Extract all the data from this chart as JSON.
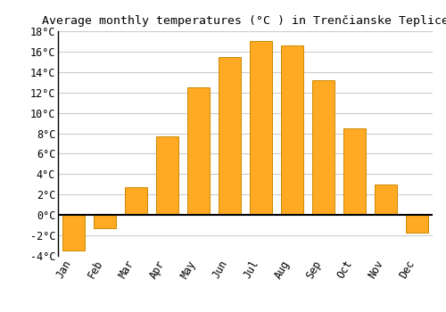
{
  "title": "Average monthly temperatures (°C ) in Trenčianske Teplice",
  "months": [
    "Jan",
    "Feb",
    "Mar",
    "Apr",
    "May",
    "Jun",
    "Jul",
    "Aug",
    "Sep",
    "Oct",
    "Nov",
    "Dec"
  ],
  "values": [
    -3.5,
    -1.3,
    2.7,
    7.7,
    12.5,
    15.5,
    17.0,
    16.6,
    13.2,
    8.5,
    3.0,
    -1.7
  ],
  "bar_color": "#FFAA22",
  "bar_edge_color": "#CC8800",
  "ylim": [
    -4,
    18
  ],
  "yticks": [
    -4,
    -2,
    0,
    2,
    4,
    6,
    8,
    10,
    12,
    14,
    16,
    18
  ],
  "background_color": "#ffffff",
  "grid_color": "#cccccc",
  "title_fontsize": 9.5,
  "tick_fontsize": 8.5,
  "zero_line_color": "#000000"
}
